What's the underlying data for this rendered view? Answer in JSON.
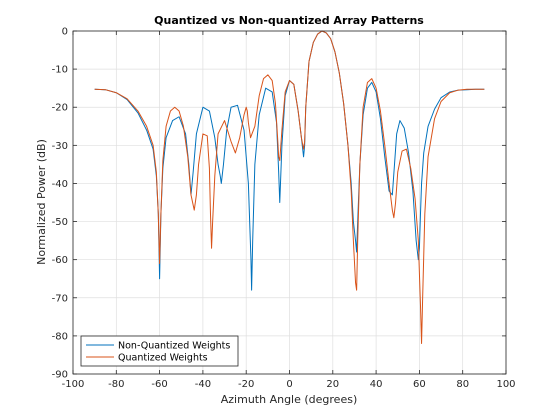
{
  "chart_data": {
    "type": "line",
    "title": "Quantized vs Non-quantized Array Patterns",
    "xlabel": "Azimuth Angle (degrees)",
    "ylabel": "Normalized Power (dB)",
    "xlim": [
      -100,
      100
    ],
    "ylim": [
      -90,
      0
    ],
    "xticks": [
      -100,
      -80,
      -60,
      -40,
      -20,
      0,
      20,
      40,
      60,
      80,
      100
    ],
    "yticks": [
      0,
      -10,
      -20,
      -30,
      -40,
      -50,
      -60,
      -70,
      -80,
      -90
    ],
    "grid": true,
    "legend_position": "bottom-left",
    "series": [
      {
        "name": "Non-Quantized Weights",
        "color": "#0072BD",
        "x": [
          -90,
          -85,
          -80,
          -75,
          -70,
          -66,
          -63,
          -61.5,
          -60.6,
          -60,
          -59.4,
          -58.5,
          -57,
          -54,
          -51,
          -48,
          -46.5,
          -45.5,
          -44.5,
          -43,
          -40,
          -37,
          -34.5,
          -33,
          -32,
          -31.5,
          -30.5,
          -29,
          -27,
          -24,
          -21,
          -19,
          -17.8,
          -17.5,
          -17,
          -16,
          -14,
          -11,
          -8,
          -6,
          -5,
          -4.5,
          -3.5,
          -2,
          0,
          2,
          4,
          5.5,
          6.5,
          7,
          7.5,
          9,
          11,
          13,
          15,
          17,
          19,
          21,
          23,
          25,
          27,
          28.5,
          29.5,
          30.5,
          31,
          31.5,
          32.5,
          34,
          36,
          38,
          40,
          42,
          44,
          46,
          47.5,
          48.5,
          49.5,
          51,
          53,
          55,
          57,
          58.5,
          59.5,
          60,
          60.5,
          61,
          62,
          64,
          67,
          70,
          74,
          78,
          82,
          86,
          90
        ],
        "y": [
          -15.3,
          -15.4,
          -16.2,
          -18,
          -21.5,
          -26,
          -31,
          -38,
          -48,
          -65,
          -48,
          -36,
          -28,
          -23.5,
          -22.5,
          -27,
          -35,
          -43,
          -37,
          -27,
          -20,
          -21,
          -28,
          -35,
          -38,
          -40,
          -35,
          -26,
          -20,
          -19.5,
          -26,
          -40,
          -60,
          -68,
          -55,
          -35,
          -22,
          -15,
          -16,
          -24,
          -37,
          -45,
          -30,
          -17,
          -13,
          -14,
          -21,
          -28,
          -33,
          -30,
          -20,
          -8,
          -3,
          -0.8,
          0,
          -0.5,
          -2,
          -5.5,
          -11,
          -19,
          -30,
          -40,
          -50,
          -55,
          -58,
          -50,
          -35,
          -22,
          -15,
          -13.5,
          -16,
          -23,
          -33,
          -42,
          -43,
          -35,
          -27,
          -23.5,
          -25.5,
          -32,
          -42,
          -55,
          -60,
          -57,
          -48,
          -40,
          -32,
          -25,
          -20.5,
          -17.5,
          -16,
          -15.5,
          -15.4,
          -15.3,
          -15.3
        ]
      },
      {
        "name": "Quantized Weights",
        "color": "#D95319",
        "x": [
          -90,
          -85,
          -80,
          -75,
          -70,
          -66,
          -63,
          -61.5,
          -60.6,
          -60,
          -59.4,
          -58.5,
          -57,
          -55,
          -53,
          -51,
          -49,
          -47,
          -45.5,
          -44,
          -43,
          -42,
          -40,
          -38,
          -37,
          -36.5,
          -36,
          -35.5,
          -34.5,
          -33,
          -30,
          -27,
          -25,
          -23,
          -21,
          -20,
          -19.5,
          -19,
          -18,
          -16,
          -14,
          -12,
          -10,
          -8,
          -6.5,
          -5.5,
          -5,
          -4.5,
          -3.5,
          -2,
          0,
          2,
          4,
          5.5,
          6.5,
          7,
          7.5,
          9,
          11,
          13,
          15,
          17,
          19,
          21,
          23,
          25,
          27,
          28.5,
          29.5,
          30.5,
          31,
          31.5,
          32.5,
          34,
          36,
          38,
          40,
          42,
          44,
          46,
          47.5,
          48.2,
          49,
          50,
          52,
          54,
          56,
          58,
          59.5,
          60.5,
          61,
          61.5,
          62.5,
          64,
          67,
          70,
          74,
          78,
          82,
          86,
          90
        ],
        "y": [
          -15.3,
          -15.4,
          -16.2,
          -17.8,
          -21,
          -25,
          -30,
          -37,
          -48,
          -61,
          -48,
          -34,
          -25,
          -21,
          -20,
          -21,
          -25,
          -33,
          -43,
          -47,
          -43,
          -35,
          -27,
          -27.5,
          -36,
          -48,
          -57,
          -50,
          -38,
          -27,
          -23.5,
          -29,
          -32,
          -28,
          -22,
          -20,
          -21,
          -24,
          -28,
          -25,
          -17,
          -12.5,
          -11.5,
          -13,
          -19,
          -28,
          -33,
          -34,
          -26,
          -16,
          -13,
          -14,
          -21,
          -28,
          -31,
          -29,
          -20,
          -8,
          -3,
          -0.8,
          0,
          -0.5,
          -2,
          -5.5,
          -11,
          -19,
          -30,
          -42,
          -55,
          -66,
          -68,
          -55,
          -35,
          -20,
          -13.5,
          -12.5,
          -15,
          -21,
          -30,
          -40,
          -47,
          -49,
          -45,
          -37,
          -31.5,
          -31,
          -36,
          -44,
          -55,
          -72,
          -82,
          -70,
          -48,
          -33,
          -23,
          -18.5,
          -16.2,
          -15.5,
          -15.3,
          -15.3,
          -15.3
        ]
      }
    ]
  }
}
